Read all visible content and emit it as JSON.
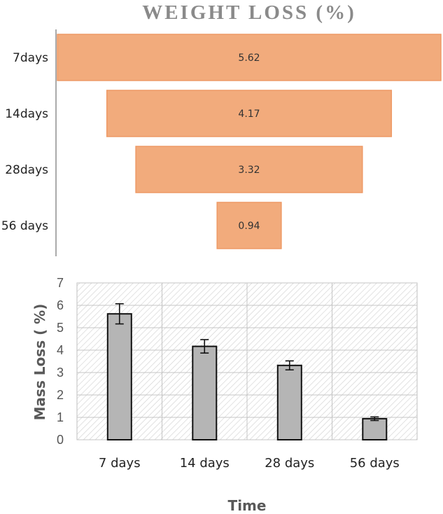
{
  "chart_data": [
    {
      "type": "bar",
      "orientation": "horizontal-funnel",
      "title": "WEIGHT LOSS (%)",
      "categories": [
        "7days",
        "14days",
        "28days",
        "56 days"
      ],
      "values": [
        5.62,
        4.17,
        3.32,
        0.94
      ],
      "value_labels": [
        "5.62",
        "4.17",
        "3.32",
        "0.94"
      ],
      "color": "#f2ab7c",
      "edge_color": "#ee9a66",
      "legend": "none"
    },
    {
      "type": "bar",
      "categories": [
        "7 days",
        "14 days",
        "28 days",
        "56 days"
      ],
      "values": [
        5.62,
        4.17,
        3.32,
        0.94
      ],
      "errors": [
        0.45,
        0.3,
        0.2,
        0.08
      ],
      "xlabel": "Time",
      "ylabel": "Mass Loss ( %)",
      "ylim": [
        0,
        7
      ],
      "yticks": [
        "0",
        "1",
        "2",
        "3",
        "4",
        "5",
        "6",
        "7"
      ],
      "grid": true,
      "background": "hatched",
      "color": "#b5b5b5",
      "edge_color": "#111111",
      "legend": "none"
    }
  ]
}
